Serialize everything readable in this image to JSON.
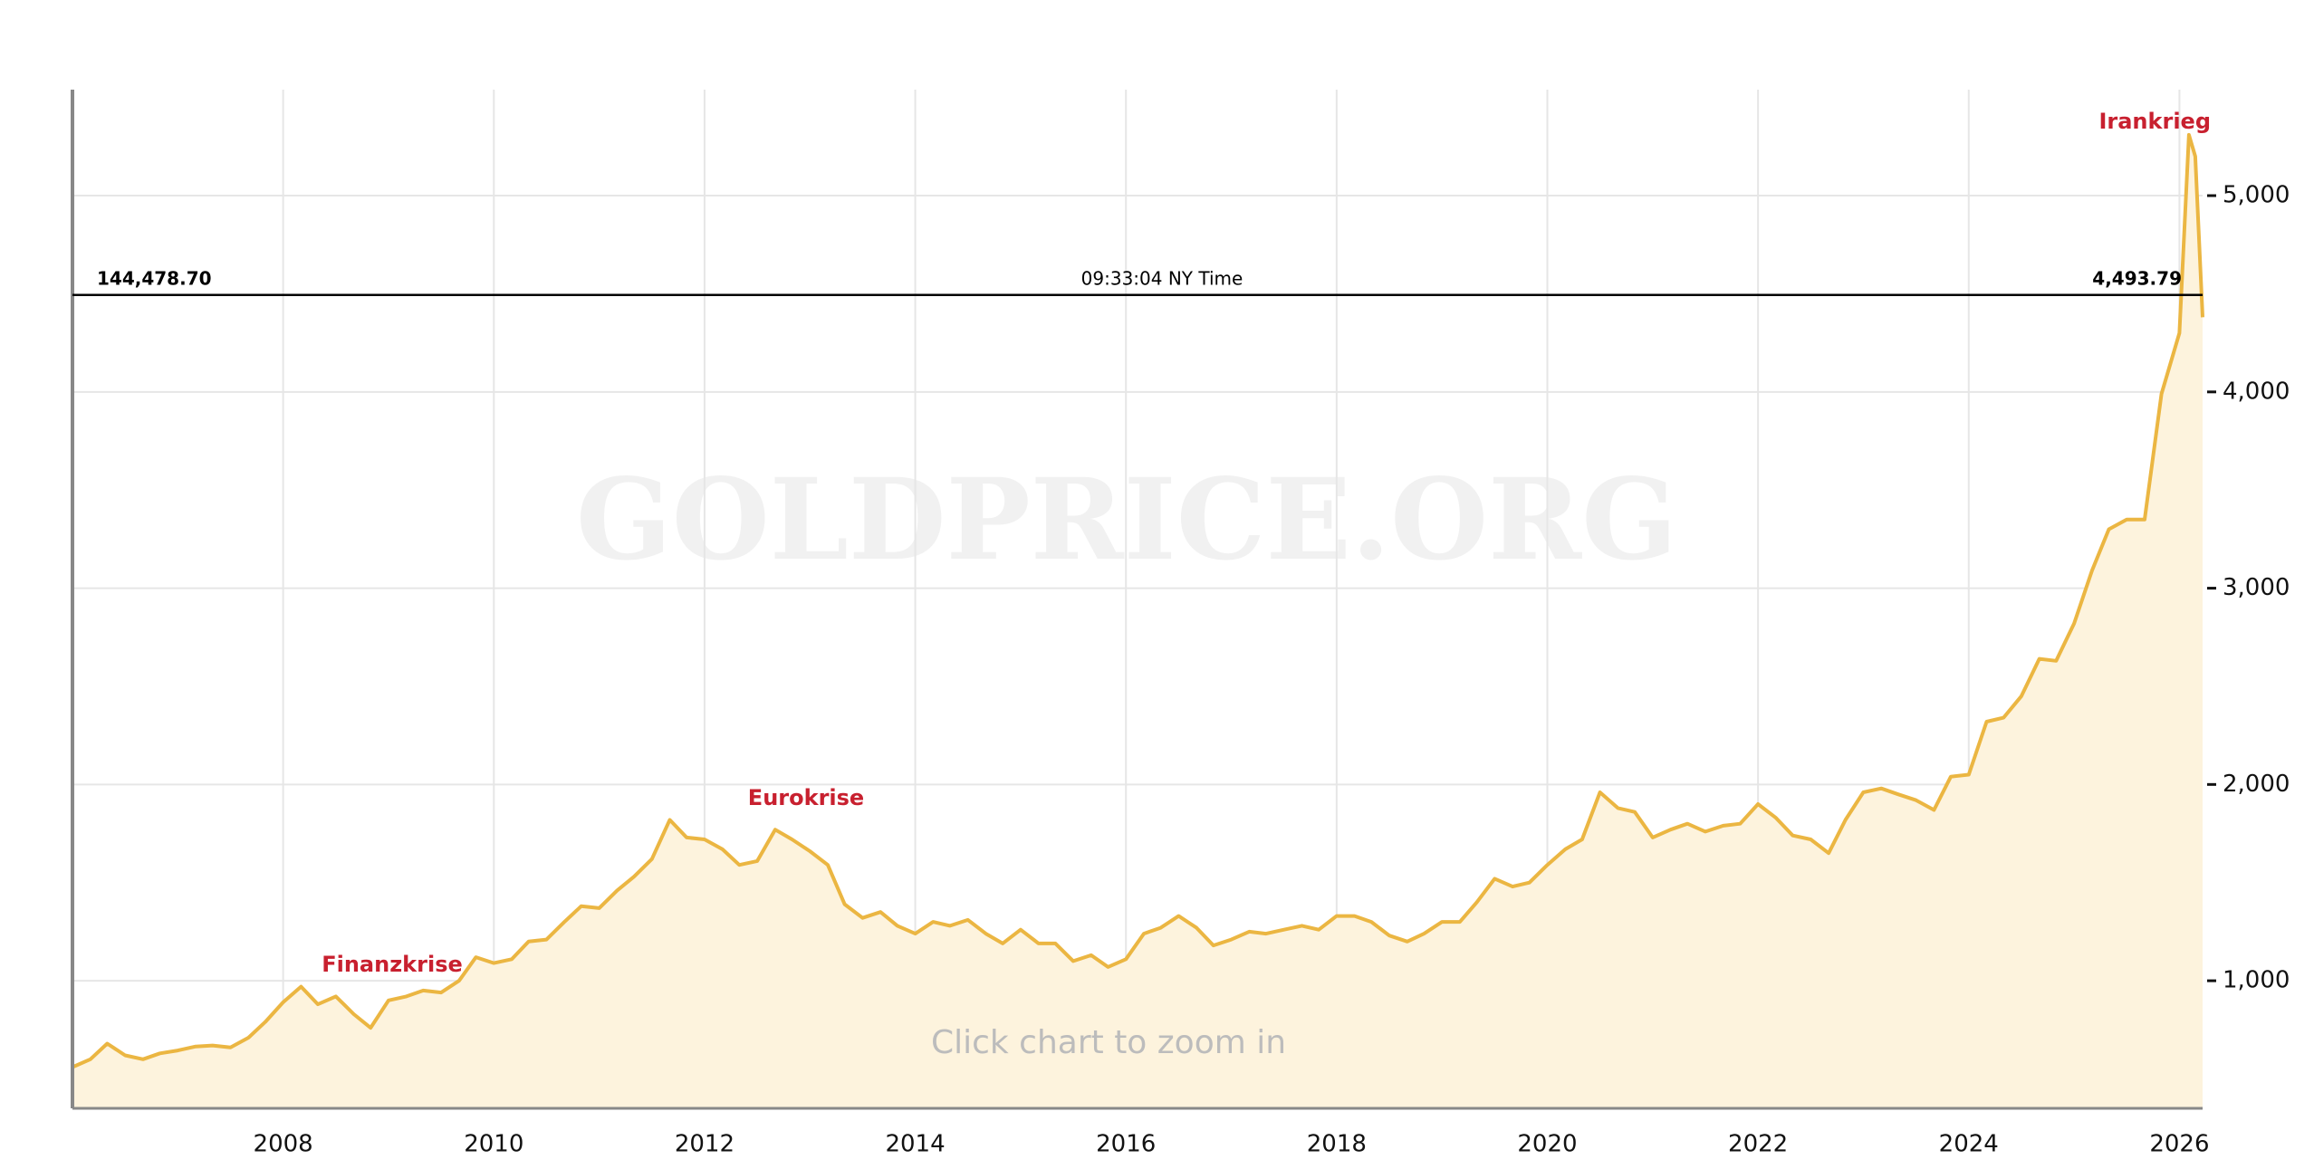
{
  "chart_data": {
    "type": "area",
    "watermark": "GOLDPRICE.ORG",
    "hint": "Click chart to zoom in",
    "annotations": [
      "Finanzkrise",
      "Eurokrise",
      "Irankrieg"
    ],
    "crosshair": {
      "value": 4493.79,
      "label": "4,493.79",
      "left_label": "144,478.70",
      "time": "09:33:04 NY Time"
    },
    "xlim": [
      2006.0,
      2026.22
    ],
    "xticks": [
      2008,
      2010,
      2012,
      2014,
      2016,
      2018,
      2020,
      2022,
      2024,
      2026
    ],
    "ylim": [
      350,
      5540
    ],
    "yticks": [
      {
        "value": 1000,
        "label": "1,000"
      },
      {
        "value": 2000,
        "label": "2,000"
      },
      {
        "value": 3000,
        "label": "3,000"
      },
      {
        "value": 4000,
        "label": "4,000"
      },
      {
        "value": 5000,
        "label": "5,000"
      }
    ],
    "grid": true,
    "color": "#ebb642",
    "fill": "#fdf3dd",
    "x": [
      2006.0,
      2006.17,
      2006.33,
      2006.5,
      2006.67,
      2006.83,
      2007.0,
      2007.17,
      2007.33,
      2007.5,
      2007.67,
      2007.83,
      2008.0,
      2008.17,
      2008.33,
      2008.5,
      2008.67,
      2008.83,
      2009.0,
      2009.17,
      2009.33,
      2009.5,
      2009.67,
      2009.83,
      2010.0,
      2010.17,
      2010.33,
      2010.5,
      2010.67,
      2010.83,
      2011.0,
      2011.17,
      2011.33,
      2011.5,
      2011.67,
      2011.83,
      2012.0,
      2012.17,
      2012.33,
      2012.5,
      2012.67,
      2012.83,
      2013.0,
      2013.17,
      2013.33,
      2013.5,
      2013.67,
      2013.83,
      2014.0,
      2014.17,
      2014.33,
      2014.5,
      2014.67,
      2014.83,
      2015.0,
      2015.17,
      2015.33,
      2015.5,
      2015.67,
      2015.83,
      2016.0,
      2016.17,
      2016.33,
      2016.5,
      2016.67,
      2016.83,
      2017.0,
      2017.17,
      2017.33,
      2017.5,
      2017.67,
      2017.83,
      2018.0,
      2018.17,
      2018.33,
      2018.5,
      2018.67,
      2018.83,
      2019.0,
      2019.17,
      2019.33,
      2019.5,
      2019.67,
      2019.83,
      2020.0,
      2020.17,
      2020.33,
      2020.5,
      2020.67,
      2020.83,
      2021.0,
      2021.17,
      2021.33,
      2021.5,
      2021.67,
      2021.83,
      2022.0,
      2022.17,
      2022.33,
      2022.5,
      2022.67,
      2022.83,
      2023.0,
      2023.17,
      2023.33,
      2023.5,
      2023.67,
      2023.83,
      2024.0,
      2024.17,
      2024.33,
      2024.5,
      2024.67,
      2024.83,
      2025.0,
      2025.17,
      2025.33,
      2025.5,
      2025.67,
      2025.83,
      2026.0,
      2026.09,
      2026.15,
      2026.22
    ],
    "values": [
      560,
      600,
      680,
      620,
      600,
      630,
      645,
      665,
      670,
      660,
      710,
      790,
      890,
      970,
      880,
      920,
      830,
      760,
      900,
      920,
      950,
      940,
      1000,
      1120,
      1090,
      1110,
      1200,
      1210,
      1300,
      1380,
      1370,
      1460,
      1530,
      1620,
      1820,
      1730,
      1720,
      1670,
      1590,
      1610,
      1770,
      1720,
      1660,
      1590,
      1390,
      1320,
      1350,
      1280,
      1240,
      1300,
      1280,
      1310,
      1240,
      1190,
      1260,
      1190,
      1190,
      1100,
      1130,
      1070,
      1110,
      1240,
      1270,
      1330,
      1270,
      1180,
      1210,
      1250,
      1240,
      1260,
      1280,
      1260,
      1330,
      1330,
      1300,
      1230,
      1200,
      1240,
      1300,
      1300,
      1400,
      1520,
      1480,
      1500,
      1590,
      1670,
      1720,
      1960,
      1880,
      1860,
      1730,
      1770,
      1800,
      1760,
      1790,
      1800,
      1900,
      1830,
      1740,
      1720,
      1650,
      1820,
      1960,
      1980,
      1950,
      1920,
      1870,
      2040,
      2050,
      2320,
      2340,
      2450,
      2640,
      2630,
      2820,
      3090,
      3300,
      3350,
      3350,
      3990,
      4300,
      5310,
      5200,
      4380
    ]
  }
}
